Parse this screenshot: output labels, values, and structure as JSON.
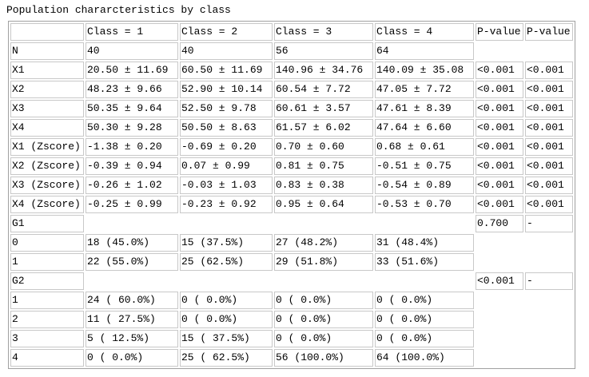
{
  "table": {
    "title": "Population chararcteristics by class",
    "header": [
      null,
      "Class = 1",
      "Class = 2",
      "Class = 3",
      "Class = 4",
      "P-value",
      "P-value"
    ],
    "rows": [
      [
        "N",
        "40",
        "40",
        "56",
        "64",
        null,
        null
      ],
      [
        "X1",
        "20.50 ± 11.69",
        "60.50 ± 11.69",
        "140.96 ± 34.76",
        "140.09 ± 35.08",
        "<0.001",
        "<0.001"
      ],
      [
        "X2",
        "48.23 ± 9.66",
        "52.90 ± 10.14",
        "60.54 ± 7.72",
        "47.05 ± 7.72",
        "<0.001",
        "<0.001"
      ],
      [
        "X3",
        "50.35 ± 9.64",
        "52.50 ± 9.78",
        "60.61 ± 3.57",
        "47.61 ± 8.39",
        "<0.001",
        "<0.001"
      ],
      [
        "X4",
        "50.30 ± 9.28",
        "50.50 ± 8.63",
        "61.57 ± 6.02",
        "47.64 ± 6.60",
        "<0.001",
        "<0.001"
      ],
      [
        "X1 (Zscore)",
        "-1.38 ± 0.20",
        "-0.69 ± 0.20",
        "0.70 ± 0.60",
        "0.68 ± 0.61",
        "<0.001",
        "<0.001"
      ],
      [
        "X2 (Zscore)",
        "-0.39 ± 0.94",
        "0.07 ± 0.99",
        "0.81 ± 0.75",
        "-0.51 ± 0.75",
        "<0.001",
        "<0.001"
      ],
      [
        "X3 (Zscore)",
        "-0.26 ± 1.02",
        "-0.03 ± 1.03",
        "0.83 ± 0.38",
        "-0.54 ± 0.89",
        "<0.001",
        "<0.001"
      ],
      [
        "X4 (Zscore)",
        "-0.25 ± 0.99",
        "-0.23 ± 0.92",
        "0.95 ± 0.64",
        "-0.53 ± 0.70",
        "<0.001",
        "<0.001"
      ],
      [
        "G1",
        null,
        null,
        null,
        null,
        "0.700",
        "-"
      ],
      [
        "0",
        "18 (45.0%)",
        "15 (37.5%)",
        "27 (48.2%)",
        "31 (48.4%)",
        null,
        null
      ],
      [
        "1",
        "22 (55.0%)",
        "25 (62.5%)",
        "29 (51.8%)",
        "33 (51.6%)",
        null,
        null
      ],
      [
        "G2",
        null,
        null,
        null,
        null,
        "<0.001",
        "-"
      ],
      [
        "1",
        "24 ( 60.0%)",
        "0 ( 0.0%)",
        "0 ( 0.0%)",
        "0 ( 0.0%)",
        null,
        null
      ],
      [
        "2",
        "11 ( 27.5%)",
        "0 ( 0.0%)",
        "0 ( 0.0%)",
        "0 ( 0.0%)",
        null,
        null
      ],
      [
        "3",
        "5 ( 12.5%)",
        "15 ( 37.5%)",
        "0 ( 0.0%)",
        "0 ( 0.0%)",
        null,
        null
      ],
      [
        "4",
        "0 ( 0.0%)",
        "25 ( 62.5%)",
        "56 (100.0%)",
        "64 (100.0%)",
        null,
        null
      ]
    ]
  }
}
